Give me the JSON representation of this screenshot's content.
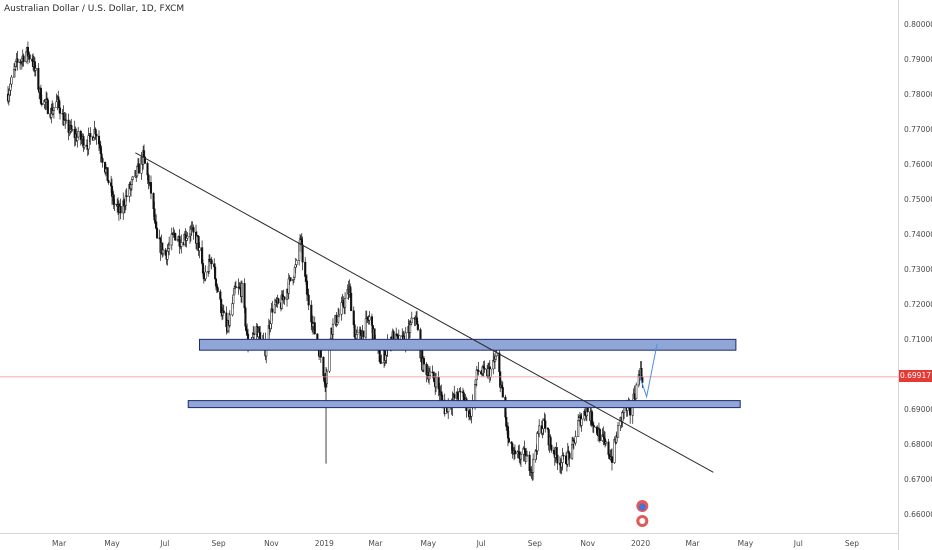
{
  "header": {
    "symbol": "Australian Dollar / U.S. Dollar",
    "interval": "1D",
    "exchange": "FXCM",
    "sep1": ", ",
    "sep2": ", "
  },
  "current_price_label": "0.69917",
  "colors": {
    "zone_fill": "#8fa6d6",
    "zone_stroke": "#1e2a6e",
    "price_line": "#f08c8c",
    "price_tag": "#e53935",
    "projection": "#4f8fe0",
    "trendline": "#2b2b2b",
    "candle": "#111111"
  },
  "chart_data": {
    "type": "candlestick",
    "y_range": [
      0.654,
      0.804
    ],
    "y_ticks": [
      "0.80000",
      "0.79000",
      "0.78000",
      "0.77000",
      "0.76000",
      "0.75000",
      "0.74000",
      "0.73000",
      "0.72000",
      "0.71000",
      "0.70000",
      "0.69000",
      "0.68000",
      "0.67000",
      "0.66000"
    ],
    "x_ticks": [
      "Mar",
      "May",
      "Jul",
      "Sep",
      "Nov",
      "2019",
      "Mar",
      "May",
      "Jul",
      "Sep",
      "Nov",
      "2020",
      "Mar",
      "May",
      "Jul",
      "Sep"
    ],
    "current_price": 0.69917,
    "zones": [
      {
        "name": "resistance-zone",
        "from_date": "2018-08-10",
        "to_date": "2020-04-20",
        "low": 0.7068,
        "high": 0.7099
      },
      {
        "name": "support-zone",
        "from_date": "2018-07-28",
        "to_date": "2020-04-25",
        "low": 0.6904,
        "high": 0.6924
      }
    ],
    "trendline": {
      "from": [
        "2018-05-28",
        0.7632
      ],
      "to": [
        "2020-03-25",
        0.6719
      ]
    },
    "projection": [
      [
        "2019-12-31",
        0.6995
      ],
      [
        "2020-01-08",
        0.6935
      ],
      [
        "2020-01-20",
        0.7085
      ]
    ],
    "price_path": [
      [
        "2018-01-01",
        0.78
      ],
      [
        "2018-01-10",
        0.788
      ],
      [
        "2018-01-22",
        0.792
      ],
      [
        "2018-01-29",
        0.79
      ],
      [
        "2018-02-08",
        0.779
      ],
      [
        "2018-02-20",
        0.775
      ],
      [
        "2018-02-28",
        0.778
      ],
      [
        "2018-03-08",
        0.771
      ],
      [
        "2018-03-20",
        0.768
      ],
      [
        "2018-04-03",
        0.766
      ],
      [
        "2018-04-12",
        0.77
      ],
      [
        "2018-04-23",
        0.759
      ],
      [
        "2018-05-03",
        0.749
      ],
      [
        "2018-05-10",
        0.746
      ],
      [
        "2018-05-18",
        0.751
      ],
      [
        "2018-05-29",
        0.757
      ],
      [
        "2018-06-06",
        0.762
      ],
      [
        "2018-06-15",
        0.752
      ],
      [
        "2018-06-22",
        0.738
      ],
      [
        "2018-07-02",
        0.734
      ],
      [
        "2018-07-12",
        0.74
      ],
      [
        "2018-07-20",
        0.738
      ],
      [
        "2018-07-30",
        0.741
      ],
      [
        "2018-08-08",
        0.738
      ],
      [
        "2018-08-15",
        0.727
      ],
      [
        "2018-08-24",
        0.733
      ],
      [
        "2018-09-03",
        0.72
      ],
      [
        "2018-09-11",
        0.712
      ],
      [
        "2018-09-20",
        0.724
      ],
      [
        "2018-09-28",
        0.724
      ],
      [
        "2018-10-05",
        0.708
      ],
      [
        "2018-10-15",
        0.713
      ],
      [
        "2018-10-25",
        0.707
      ],
      [
        "2018-11-02",
        0.719
      ],
      [
        "2018-11-12",
        0.72
      ],
      [
        "2018-11-20",
        0.725
      ],
      [
        "2018-11-30",
        0.731
      ],
      [
        "2018-12-04",
        0.739
      ],
      [
        "2018-12-12",
        0.723
      ],
      [
        "2018-12-20",
        0.713
      ],
      [
        "2018-12-28",
        0.705
      ],
      [
        "2019-01-03",
        0.697
      ],
      [
        "2019-01-08",
        0.712
      ],
      [
        "2019-01-18",
        0.717
      ],
      [
        "2019-01-30",
        0.724
      ],
      [
        "2019-02-06",
        0.71
      ],
      [
        "2019-02-14",
        0.712
      ],
      [
        "2019-02-22",
        0.716
      ],
      [
        "2019-03-01",
        0.709
      ],
      [
        "2019-03-08",
        0.703
      ],
      [
        "2019-03-20",
        0.711
      ],
      [
        "2019-03-28",
        0.709
      ],
      [
        "2019-04-05",
        0.71
      ],
      [
        "2019-04-16",
        0.717
      ],
      [
        "2019-04-24",
        0.703
      ],
      [
        "2019-05-02",
        0.7
      ],
      [
        "2019-05-10",
        0.698
      ],
      [
        "2019-05-20",
        0.69
      ],
      [
        "2019-05-31",
        0.693
      ],
      [
        "2019-06-10",
        0.694
      ],
      [
        "2019-06-18",
        0.688
      ],
      [
        "2019-06-27",
        0.701
      ],
      [
        "2019-07-05",
        0.7
      ],
      [
        "2019-07-12",
        0.701
      ],
      [
        "2019-07-19",
        0.705
      ],
      [
        "2019-07-26",
        0.693
      ],
      [
        "2019-08-02",
        0.68
      ],
      [
        "2019-08-09",
        0.676
      ],
      [
        "2019-08-19",
        0.677
      ],
      [
        "2019-08-29",
        0.673
      ],
      [
        "2019-09-06",
        0.684
      ],
      [
        "2019-09-12",
        0.686
      ],
      [
        "2019-09-20",
        0.679
      ],
      [
        "2019-09-30",
        0.675
      ],
      [
        "2019-10-04",
        0.675
      ],
      [
        "2019-10-14",
        0.678
      ],
      [
        "2019-10-21",
        0.686
      ],
      [
        "2019-10-31",
        0.69
      ],
      [
        "2019-11-08",
        0.686
      ],
      [
        "2019-11-18",
        0.681
      ],
      [
        "2019-11-29",
        0.676
      ],
      [
        "2019-12-06",
        0.684
      ],
      [
        "2019-12-13",
        0.69
      ],
      [
        "2019-12-20",
        0.689
      ],
      [
        "2019-12-27",
        0.696
      ],
      [
        "2019-12-31",
        0.701
      ],
      [
        "2020-01-03",
        0.6992
      ]
    ]
  }
}
